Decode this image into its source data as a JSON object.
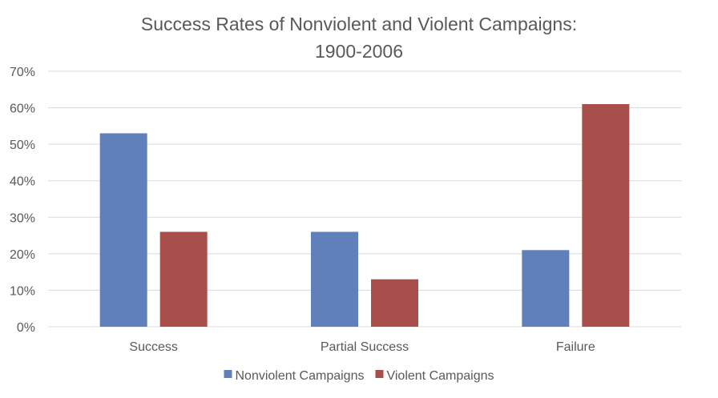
{
  "chart_data": {
    "type": "bar",
    "title_lines": [
      "Success Rates of Nonviolent and Violent Campaigns:",
      "1900-2006"
    ],
    "categories": [
      "Success",
      "Partial Success",
      "Failure"
    ],
    "series": [
      {
        "name": "Nonviolent Campaigns",
        "color": "#6080bc",
        "values": [
          53,
          26,
          21
        ]
      },
      {
        "name": "Violent Campaigns",
        "color": "#a84f4c",
        "values": [
          26,
          13,
          61
        ]
      }
    ],
    "y_ticks": [
      "0%",
      "10%",
      "20%",
      "30%",
      "40%",
      "50%",
      "60%",
      "70%"
    ],
    "ylim": [
      0,
      70
    ],
    "y_unit": "%",
    "grid": true,
    "legend_position": "bottom-center",
    "colors": {
      "gridline": "#d9d9d9",
      "axis_text": "#595959",
      "title_text": "#595959"
    }
  }
}
